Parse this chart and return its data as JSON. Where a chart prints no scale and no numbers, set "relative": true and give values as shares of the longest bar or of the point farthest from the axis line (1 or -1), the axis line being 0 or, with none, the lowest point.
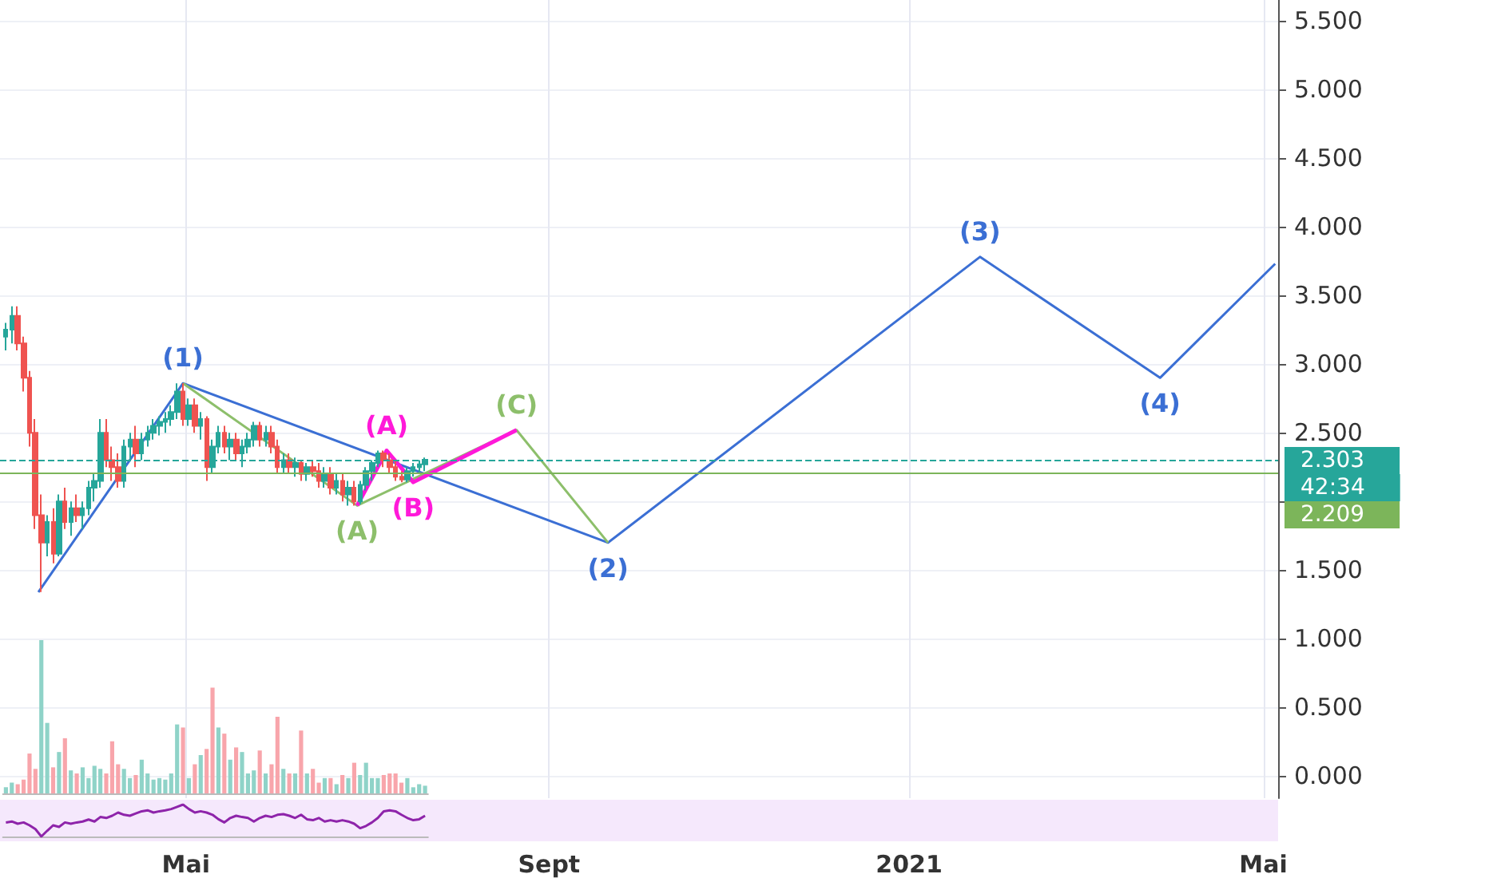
{
  "chart_data": [
    {
      "type": "candlestick",
      "colors": [
        "#26a69a",
        "#26a69a",
        "#ef5350",
        "#ef5350",
        "#ef5350",
        "#ef5350",
        "#ef5350",
        "#26a69a",
        "#ef5350",
        "#26a69a",
        "#ef5350",
        "#26a69a",
        "#ef5350",
        "#26a69a",
        "#26a69a",
        "#26a69a",
        "#26a69a",
        "#ef5350",
        "#ef5350",
        "#ef5350",
        "#26a69a",
        "#26a69a",
        "#ef5350",
        "#26a69a",
        "#26a69a",
        "#26a69a",
        "#26a69a",
        "#26a69a",
        "#26a69a",
        "#26a69a",
        "#ef5350",
        "#26a69a",
        "#ef5350",
        "#26a69a",
        "#ef5350",
        "#26a69a",
        "#26a69a",
        "#ef5350",
        "#26a69a",
        "#ef5350",
        "#26a69a",
        "#26a69a",
        "#26a69a",
        "#ef5350",
        "#26a69a",
        "#ef5350",
        "#ef5350",
        "#26a69a",
        "#ef5350",
        "#26a69a",
        "#ef5350",
        "#26a69a",
        "#ef5350",
        "#ef5350",
        "#26a69a",
        "#ef5350",
        "#26a69a",
        "#ef5350",
        "#26a69a",
        "#ef5350",
        "#26a69a",
        "#26a69a",
        "#26a69a",
        "#26a69a",
        "#ef5350",
        "#ef5350",
        "#ef5350",
        "#ef5350",
        "#26a69a",
        "#26a69a",
        "#26a69a",
        "#26a69a"
      ],
      "x": [
        "2020-03-01",
        "2020-03-03",
        "2020-03-05",
        "2020-03-07",
        "2020-03-09",
        "2020-03-11",
        "2020-03-13",
        "2020-03-15",
        "2020-03-17",
        "2020-03-19",
        "2020-03-21",
        "2020-03-23",
        "2020-03-25",
        "2020-03-27",
        "2020-03-29",
        "2020-03-31",
        "2020-04-02",
        "2020-04-04",
        "2020-04-06",
        "2020-04-08",
        "2020-04-10",
        "2020-04-12",
        "2020-04-14",
        "2020-04-16",
        "2020-04-18",
        "2020-04-20",
        "2020-04-22",
        "2020-04-24",
        "2020-04-26",
        "2020-04-28",
        "2020-04-30",
        "2020-05-02",
        "2020-05-04",
        "2020-05-06",
        "2020-05-08",
        "2020-05-10",
        "2020-05-12",
        "2020-05-14",
        "2020-05-16",
        "2020-05-18",
        "2020-05-20",
        "2020-05-22",
        "2020-05-24",
        "2020-05-26",
        "2020-05-28",
        "2020-05-30",
        "2020-06-01",
        "2020-06-03",
        "2020-06-05",
        "2020-06-07",
        "2020-06-09",
        "2020-06-11",
        "2020-06-13",
        "2020-06-15",
        "2020-06-17",
        "2020-06-19",
        "2020-06-21",
        "2020-06-23",
        "2020-06-25",
        "2020-06-27",
        "2020-06-29",
        "2020-07-01",
        "2020-07-03",
        "2020-07-05",
        "2020-07-07",
        "2020-07-09",
        "2020-07-11",
        "2020-07-13",
        "2020-07-15",
        "2020-07-17",
        "2020-07-19",
        "2020-07-21"
      ],
      "ohlc": [
        [
          3.2,
          3.3,
          3.1,
          3.25
        ],
        [
          3.25,
          3.42,
          3.15,
          3.35
        ],
        [
          3.35,
          3.42,
          3.1,
          3.15
        ],
        [
          3.15,
          3.2,
          2.8,
          2.9
        ],
        [
          2.9,
          2.95,
          2.4,
          2.5
        ],
        [
          2.5,
          2.6,
          1.8,
          1.9
        ],
        [
          1.9,
          2.05,
          1.34,
          1.7
        ],
        [
          1.7,
          1.9,
          1.6,
          1.85
        ],
        [
          1.85,
          1.95,
          1.55,
          1.62
        ],
        [
          1.62,
          2.05,
          1.6,
          2.0
        ],
        [
          2.0,
          2.1,
          1.8,
          1.85
        ],
        [
          1.85,
          2.0,
          1.75,
          1.95
        ],
        [
          1.95,
          2.05,
          1.85,
          1.9
        ],
        [
          1.9,
          2.0,
          1.8,
          1.95
        ],
        [
          1.95,
          2.15,
          1.9,
          2.1
        ],
        [
          2.1,
          2.2,
          2.0,
          2.15
        ],
        [
          2.15,
          2.6,
          2.1,
          2.5
        ],
        [
          2.5,
          2.6,
          2.25,
          2.3
        ],
        [
          2.3,
          2.4,
          2.15,
          2.25
        ],
        [
          2.25,
          2.35,
          2.1,
          2.15
        ],
        [
          2.15,
          2.45,
          2.1,
          2.4
        ],
        [
          2.4,
          2.5,
          2.3,
          2.45
        ],
        [
          2.45,
          2.55,
          2.25,
          2.35
        ],
        [
          2.35,
          2.5,
          2.3,
          2.45
        ],
        [
          2.45,
          2.55,
          2.4,
          2.5
        ],
        [
          2.5,
          2.6,
          2.45,
          2.55
        ],
        [
          2.55,
          2.62,
          2.48,
          2.58
        ],
        [
          2.58,
          2.65,
          2.5,
          2.6
        ],
        [
          2.6,
          2.7,
          2.55,
          2.65
        ],
        [
          2.65,
          2.86,
          2.6,
          2.8
        ],
        [
          2.8,
          2.86,
          2.55,
          2.6
        ],
        [
          2.6,
          2.75,
          2.55,
          2.7
        ],
        [
          2.7,
          2.75,
          2.5,
          2.55
        ],
        [
          2.55,
          2.65,
          2.45,
          2.6
        ],
        [
          2.6,
          2.62,
          2.15,
          2.25
        ],
        [
          2.25,
          2.45,
          2.2,
          2.4
        ],
        [
          2.4,
          2.55,
          2.35,
          2.5
        ],
        [
          2.5,
          2.55,
          2.35,
          2.4
        ],
        [
          2.4,
          2.5,
          2.3,
          2.45
        ],
        [
          2.45,
          2.5,
          2.3,
          2.35
        ],
        [
          2.35,
          2.45,
          2.25,
          2.4
        ],
        [
          2.4,
          2.5,
          2.35,
          2.45
        ],
        [
          2.45,
          2.58,
          2.4,
          2.55
        ],
        [
          2.55,
          2.58,
          2.4,
          2.45
        ],
        [
          2.45,
          2.55,
          2.4,
          2.5
        ],
        [
          2.5,
          2.55,
          2.35,
          2.4
        ],
        [
          2.4,
          2.45,
          2.2,
          2.25
        ],
        [
          2.25,
          2.35,
          2.2,
          2.3
        ],
        [
          2.3,
          2.35,
          2.2,
          2.25
        ],
        [
          2.25,
          2.32,
          2.18,
          2.28
        ],
        [
          2.28,
          2.3,
          2.15,
          2.2
        ],
        [
          2.2,
          2.28,
          2.15,
          2.25
        ],
        [
          2.25,
          2.3,
          2.18,
          2.22
        ],
        [
          2.22,
          2.28,
          2.1,
          2.15
        ],
        [
          2.15,
          2.25,
          2.1,
          2.2
        ],
        [
          2.2,
          2.25,
          2.05,
          2.1
        ],
        [
          2.1,
          2.2,
          2.05,
          2.15
        ],
        [
          2.15,
          2.2,
          2.0,
          2.05
        ],
        [
          2.05,
          2.15,
          1.97,
          2.1
        ],
        [
          2.1,
          2.15,
          1.97,
          2.0
        ],
        [
          2.0,
          2.15,
          1.98,
          2.12
        ],
        [
          2.12,
          2.25,
          2.08,
          2.22
        ],
        [
          2.22,
          2.3,
          2.15,
          2.28
        ],
        [
          2.28,
          2.37,
          2.25,
          2.35
        ],
        [
          2.35,
          2.37,
          2.25,
          2.3
        ],
        [
          2.3,
          2.35,
          2.2,
          2.25
        ],
        [
          2.25,
          2.3,
          2.15,
          2.18
        ],
        [
          2.18,
          2.22,
          2.14,
          2.16
        ],
        [
          2.16,
          2.25,
          2.14,
          2.22
        ],
        [
          2.22,
          2.28,
          2.18,
          2.25
        ],
        [
          2.25,
          2.3,
          2.2,
          2.27
        ],
        [
          2.27,
          2.32,
          2.22,
          2.303
        ]
      ],
      "series": [
        {
          "type": "line",
          "color": "#3b6fd4",
          "x": [
            "2020-03-12",
            "2020-04-30",
            "2020-09-21",
            "2021-01-25",
            "2021-03-27",
            "2021-05-05"
          ],
          "values": [
            1.34,
            2.86,
            1.7,
            3.78,
            2.9,
            3.73
          ]
        },
        {
          "type": "line",
          "color": "#8dbf6b",
          "x": [
            "2020-04-30",
            "2020-06-28",
            "2020-08-21",
            "2020-09-21"
          ],
          "values": [
            2.86,
            1.97,
            2.52,
            1.7
          ]
        },
        {
          "type": "line",
          "color": "#ff19d9",
          "x": [
            "2020-06-28",
            "2020-07-08",
            "2020-07-17",
            "2020-08-21"
          ],
          "values": [
            1.97,
            2.37,
            2.14,
            2.52
          ]
        }
      ],
      "xlim": [
        "2020-02-28",
        "2021-05-06"
      ],
      "xticks": [
        {
          "value": "2020-05-01",
          "label": "Mai"
        },
        {
          "value": "2020-09-01",
          "label": "Sept"
        },
        {
          "value": "2021-01-01",
          "label": "2021"
        },
        {
          "value": "2021-05-01",
          "label": "Mai"
        }
      ],
      "ylim": [
        -0.16,
        5.65
      ],
      "yticks": [
        {
          "value": 0,
          "label": "0.000"
        },
        {
          "value": 0.5,
          "label": "0.500"
        },
        {
          "value": 1,
          "label": "1.000"
        },
        {
          "value": 1.5,
          "label": "1.500"
        },
        {
          "value": 2,
          "label": null
        },
        {
          "value": 2.5,
          "label": "2.500"
        },
        {
          "value": 3,
          "label": "3.000"
        },
        {
          "value": 3.5,
          "label": "3.500"
        },
        {
          "value": 4,
          "label": "4.000"
        },
        {
          "value": 4.5,
          "label": "4.500"
        },
        {
          "value": 5,
          "label": "5.000"
        },
        {
          "value": 5.5,
          "label": "5.500"
        }
      ],
      "grid": true,
      "ref_lines": [
        {
          "axis": "y",
          "value": 2.303,
          "label": "2.303",
          "color": "#26a69a",
          "line_style": "dashed"
        },
        {
          "axis": "y",
          "value": 2.209,
          "label": "2.209",
          "color": "#7cb55a",
          "line_style": "solid"
        }
      ],
      "annotations": [
        {
          "text": "(1)",
          "x": "2020-04-30",
          "y": 2.86
        },
        {
          "text": "(2)",
          "x": "2020-09-21",
          "y": 1.7
        },
        {
          "text": "(3)",
          "x": "2021-01-25",
          "y": 3.78
        },
        {
          "text": "(4)",
          "x": "2021-03-27",
          "y": 2.9
        },
        {
          "text": "(A)",
          "x": "2020-06-28",
          "y": 1.97
        },
        {
          "text": "(A)",
          "x": "2020-07-08",
          "y": 2.37
        },
        {
          "text": "(B)",
          "x": "2020-07-17",
          "y": 2.14
        },
        {
          "text": "(C)",
          "x": "2020-08-21",
          "y": 2.52
        },
        "42:34"
      ]
    },
    {
      "type": "bar",
      "relative": true,
      "categories": [
        null,
        null,
        null,
        null,
        null,
        null,
        null,
        null,
        null,
        null,
        null,
        null,
        null,
        null,
        null,
        null,
        null,
        null,
        null,
        null,
        null,
        null,
        null,
        null,
        null,
        null,
        null,
        null,
        null,
        null,
        null,
        null,
        null,
        null,
        null,
        null,
        null,
        null,
        null,
        null,
        null,
        null,
        null,
        null,
        null,
        null,
        null,
        null,
        null,
        null,
        null,
        null,
        null,
        null,
        null,
        null,
        null,
        null,
        null,
        null,
        null,
        null,
        null,
        null,
        null,
        null,
        null,
        null,
        null,
        null,
        null,
        null
      ],
      "values": [
        0.04,
        0.07,
        0.06,
        0.09,
        0.26,
        0.16,
        1,
        0.46,
        0.17,
        0.27,
        0.36,
        0.15,
        0.13,
        0.17,
        0.1,
        0.18,
        0.16,
        0.13,
        0.34,
        0.19,
        0.16,
        0.1,
        0.12,
        0.22,
        0.13,
        0.09,
        0.1,
        0.09,
        0.13,
        0.45,
        0.43,
        0.1,
        0.19,
        0.25,
        0.29,
        0.69,
        0.43,
        0.39,
        0.22,
        0.3,
        0.27,
        0.13,
        0.15,
        0.28,
        0.13,
        0.19,
        0.5,
        0.16,
        0.13,
        0.13,
        0.41,
        0.13,
        0.16,
        0.07,
        0.1,
        0.1,
        0.06,
        0.12,
        0.1,
        0.2,
        0.12,
        0.2,
        0.1,
        0.1,
        0.12,
        0.13,
        0.13,
        0.07,
        0.1,
        0.04,
        0.06,
        0.05
      ],
      "colors": [
        "#8fd3c8",
        "#8fd3c8",
        "#f8a5ab",
        "#f8a5ab",
        "#f8a5ab",
        "#f8a5ab",
        "#8fd3c8",
        "#8fd3c8",
        "#f8a5ab",
        "#8fd3c8",
        "#f8a5ab",
        "#8fd3c8",
        "#f8a5ab",
        "#8fd3c8",
        "#8fd3c8",
        "#8fd3c8",
        "#8fd3c8",
        "#f8a5ab",
        "#f8a5ab",
        "#f8a5ab",
        "#8fd3c8",
        "#8fd3c8",
        "#f8a5ab",
        "#8fd3c8",
        "#8fd3c8",
        "#8fd3c8",
        "#8fd3c8",
        "#8fd3c8",
        "#8fd3c8",
        "#8fd3c8",
        "#f8a5ab",
        "#8fd3c8",
        "#f8a5ab",
        "#8fd3c8",
        "#f8a5ab",
        "#f8a5ab",
        "#8fd3c8",
        "#f8a5ab",
        "#8fd3c8",
        "#f8a5ab",
        "#8fd3c8",
        "#8fd3c8",
        "#8fd3c8",
        "#f8a5ab",
        "#8fd3c8",
        "#f8a5ab",
        "#f8a5ab",
        "#8fd3c8",
        "#f8a5ab",
        "#8fd3c8",
        "#f8a5ab",
        "#8fd3c8",
        "#f8a5ab",
        "#f8a5ab",
        "#8fd3c8",
        "#f8a5ab",
        "#8fd3c8",
        "#f8a5ab",
        "#8fd3c8",
        "#f8a5ab",
        "#8fd3c8",
        "#8fd3c8",
        "#8fd3c8",
        "#8fd3c8",
        "#f8a5ab",
        "#f8a5ab",
        "#f8a5ab",
        "#f8a5ab",
        "#8fd3c8",
        "#8fd3c8",
        "#8fd3c8",
        "#8fd3c8"
      ]
    },
    {
      "type": "line",
      "relative": true,
      "color": "#8e24aa",
      "categories": [
        null,
        null,
        null,
        null,
        null,
        null,
        null,
        null,
        null,
        null,
        null,
        null,
        null,
        null,
        null,
        null,
        null,
        null,
        null,
        null,
        null,
        null,
        null,
        null,
        null,
        null,
        null,
        null,
        null,
        null,
        null,
        null,
        null,
        null,
        null,
        null,
        null,
        null,
        null,
        null,
        null,
        null,
        null,
        null,
        null,
        null,
        null,
        null,
        null,
        null,
        null,
        null,
        null,
        null,
        null,
        null,
        null,
        null,
        null,
        null,
        null,
        null,
        null,
        null,
        null,
        null,
        null,
        null,
        null,
        null,
        null,
        null
      ],
      "values": [
        0.44,
        0.47,
        0.4,
        0.44,
        0.35,
        0.23,
        0,
        0.18,
        0.35,
        0.3,
        0.44,
        0.4,
        0.44,
        0.47,
        0.53,
        0.47,
        0.61,
        0.58,
        0.65,
        0.75,
        0.68,
        0.65,
        0.72,
        0.79,
        0.82,
        0.75,
        0.79,
        0.82,
        0.86,
        0.93,
        1,
        0.86,
        0.75,
        0.79,
        0.75,
        0.68,
        0.54,
        0.44,
        0.58,
        0.65,
        0.61,
        0.58,
        0.47,
        0.58,
        0.65,
        0.61,
        0.68,
        0.7,
        0.65,
        0.58,
        0.68,
        0.54,
        0.51,
        0.58,
        0.47,
        0.51,
        0.47,
        0.51,
        0.47,
        0.4,
        0.26,
        0.33,
        0.44,
        0.58,
        0.79,
        0.82,
        0.79,
        0.68,
        0.58,
        0.51,
        0.54,
        0.65
      ]
    }
  ]
}
